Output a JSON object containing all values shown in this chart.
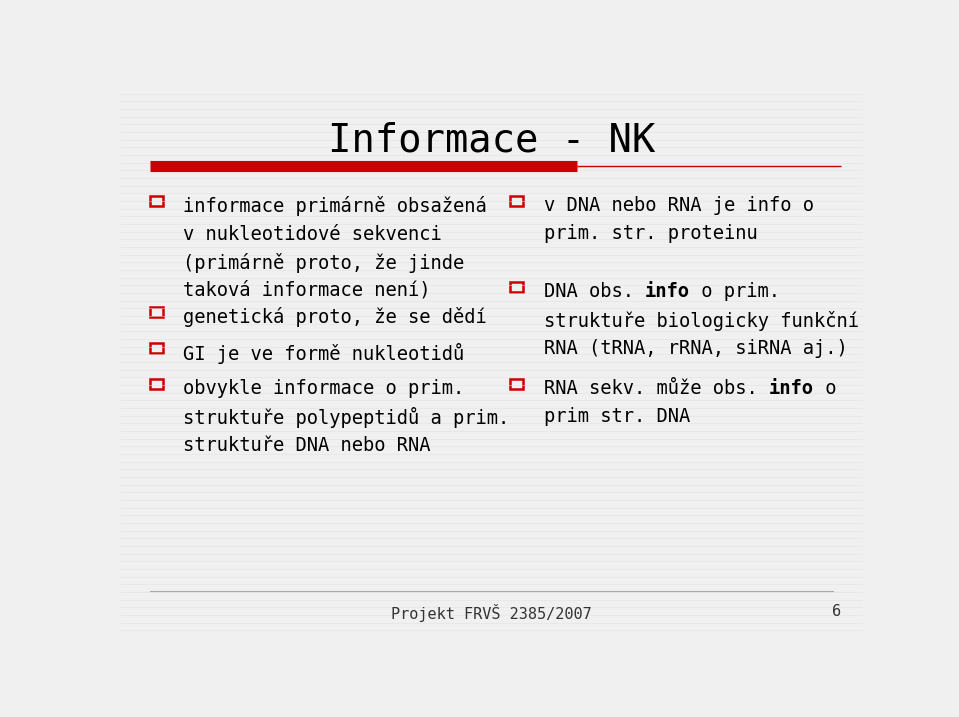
{
  "title": "Informace - NK",
  "background_color": "#f0f0f0",
  "title_color": "#000000",
  "title_fontsize": 28,
  "text_fontsize": 13.5,
  "footer_text": "Projekt FRVŠ 2385/2007",
  "footer_page": "6",
  "red_bar_color": "#cc0000",
  "thin_line_color": "#cc0000",
  "checkbox_color": "#cc0000",
  "left_bullets": [
    "informace primárně obsažená\nv nukleotidové sekvenci\n(primárně proto, že jinde\ntaková informace není)",
    "genetická proto, že se dědí",
    "GI je ve formě nukleotidů",
    "obvykle informace o prim.\nstruktuře polypeptidů a prim.\nstruktuře DNA nebo RNA"
  ],
  "right_bullet1": "v DNA nebo RNA je info o\nprim. str. proteinu",
  "right_bullet2_pre": "DNA obs. ",
  "right_bullet2_bold": "info",
  "right_bullet2_post": " o prim.\nstruktuře biologicky funkční\nRNA (tRNA, rRNA, siRNA aj.)",
  "right_bullet3_pre": "RNA sekv. může obs. ",
  "right_bullet3_bold": "info",
  "right_bullet3_post": " o\nprim str. DNA",
  "line_color": "#bbbbbb",
  "font_family": "monospace"
}
